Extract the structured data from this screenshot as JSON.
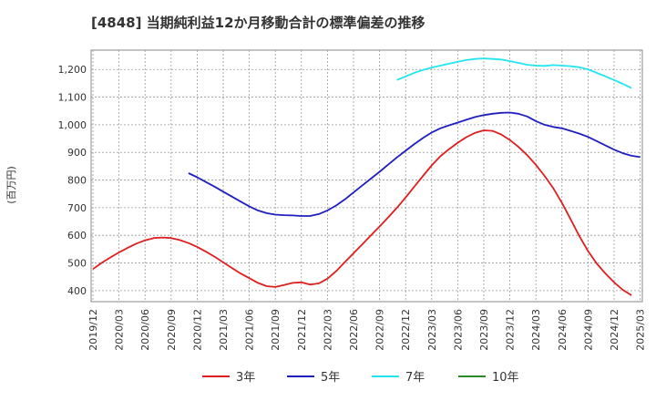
{
  "chart_data": {
    "type": "line",
    "title": "[4848]  当期純利益12か月移動合計の標準偏差の推移",
    "ylabel": "(百万円)",
    "xlabel": "",
    "ylim": [
      360,
      1270
    ],
    "yticks": [
      400,
      500,
      600,
      700,
      800,
      900,
      1000,
      1100,
      1200
    ],
    "ytick_labels": [
      "400",
      "500",
      "600",
      "700",
      "800",
      "900",
      "1,000",
      "1,100",
      "1,200"
    ],
    "xticks": [
      "2019/12",
      "2020/03",
      "2020/06",
      "2020/09",
      "2020/12",
      "2021/03",
      "2021/06",
      "2021/09",
      "2021/12",
      "2022/03",
      "2022/06",
      "2022/09",
      "2022/12",
      "2023/03",
      "2023/06",
      "2023/09",
      "2023/12",
      "2024/03",
      "2024/06",
      "2024/09",
      "2024/12",
      "2025/03"
    ],
    "grid": true,
    "legend_position": "bottom",
    "series": [
      {
        "name": "3年",
        "color": "#dd1f1f",
        "points": [
          [
            "2019/12",
            478
          ],
          [
            "2020/01",
            500
          ],
          [
            "2020/02",
            520
          ],
          [
            "2020/03",
            538
          ],
          [
            "2020/04",
            555
          ],
          [
            "2020/05",
            570
          ],
          [
            "2020/06",
            582
          ],
          [
            "2020/07",
            590
          ],
          [
            "2020/08",
            592
          ],
          [
            "2020/09",
            590
          ],
          [
            "2020/10",
            583
          ],
          [
            "2020/11",
            572
          ],
          [
            "2020/12",
            558
          ],
          [
            "2021/01",
            541
          ],
          [
            "2021/02",
            523
          ],
          [
            "2021/03",
            502
          ],
          [
            "2021/04",
            482
          ],
          [
            "2021/05",
            462
          ],
          [
            "2021/06",
            445
          ],
          [
            "2021/07",
            428
          ],
          [
            "2021/08",
            416
          ],
          [
            "2021/09",
            413
          ],
          [
            "2021/10",
            420
          ],
          [
            "2021/11",
            428
          ],
          [
            "2021/12",
            430
          ],
          [
            "2022/01",
            422
          ],
          [
            "2022/02",
            426
          ],
          [
            "2022/03",
            443
          ],
          [
            "2022/04",
            470
          ],
          [
            "2022/05",
            503
          ],
          [
            "2022/06",
            535
          ],
          [
            "2022/07",
            567
          ],
          [
            "2022/08",
            600
          ],
          [
            "2022/09",
            632
          ],
          [
            "2022/10",
            665
          ],
          [
            "2022/11",
            700
          ],
          [
            "2022/12",
            737
          ],
          [
            "2023/01",
            776
          ],
          [
            "2023/02",
            815
          ],
          [
            "2023/03",
            853
          ],
          [
            "2023/04",
            886
          ],
          [
            "2023/05",
            912
          ],
          [
            "2023/06",
            935
          ],
          [
            "2023/07",
            955
          ],
          [
            "2023/08",
            971
          ],
          [
            "2023/09",
            980
          ],
          [
            "2023/10",
            978
          ],
          [
            "2023/11",
            965
          ],
          [
            "2023/12",
            945
          ],
          [
            "2024/01",
            920
          ],
          [
            "2024/02",
            890
          ],
          [
            "2024/03",
            855
          ],
          [
            "2024/04",
            815
          ],
          [
            "2024/05",
            770
          ],
          [
            "2024/06",
            717
          ],
          [
            "2024/07",
            658
          ],
          [
            "2024/08",
            597
          ],
          [
            "2024/09",
            543
          ],
          [
            "2024/10",
            498
          ],
          [
            "2024/11",
            462
          ],
          [
            "2024/12",
            430
          ],
          [
            "2025/01",
            403
          ],
          [
            "2025/02",
            383
          ]
        ]
      },
      {
        "name": "5年",
        "color": "#1f1fbf",
        "points": [
          [
            "2020/11",
            825
          ],
          [
            "2020/12",
            810
          ],
          [
            "2021/01",
            793
          ],
          [
            "2021/02",
            776
          ],
          [
            "2021/03",
            758
          ],
          [
            "2021/04",
            740
          ],
          [
            "2021/05",
            722
          ],
          [
            "2021/06",
            705
          ],
          [
            "2021/07",
            690
          ],
          [
            "2021/08",
            680
          ],
          [
            "2021/09",
            675
          ],
          [
            "2021/10",
            673
          ],
          [
            "2021/11",
            672
          ],
          [
            "2021/12",
            670
          ],
          [
            "2022/01",
            670
          ],
          [
            "2022/02",
            677
          ],
          [
            "2022/03",
            690
          ],
          [
            "2022/04",
            708
          ],
          [
            "2022/05",
            730
          ],
          [
            "2022/06",
            755
          ],
          [
            "2022/07",
            780
          ],
          [
            "2022/08",
            805
          ],
          [
            "2022/09",
            830
          ],
          [
            "2022/10",
            856
          ],
          [
            "2022/11",
            882
          ],
          [
            "2022/12",
            906
          ],
          [
            "2023/01",
            930
          ],
          [
            "2023/02",
            952
          ],
          [
            "2023/03",
            972
          ],
          [
            "2023/04",
            987
          ],
          [
            "2023/05",
            998
          ],
          [
            "2023/06",
            1008
          ],
          [
            "2023/07",
            1018
          ],
          [
            "2023/08",
            1028
          ],
          [
            "2023/09",
            1035
          ],
          [
            "2023/10",
            1040
          ],
          [
            "2023/11",
            1043
          ],
          [
            "2023/12",
            1044
          ],
          [
            "2024/01",
            1040
          ],
          [
            "2024/02",
            1030
          ],
          [
            "2024/03",
            1013
          ],
          [
            "2024/04",
            1000
          ],
          [
            "2024/05",
            992
          ],
          [
            "2024/06",
            987
          ],
          [
            "2024/07",
            978
          ],
          [
            "2024/08",
            968
          ],
          [
            "2024/09",
            956
          ],
          [
            "2024/10",
            941
          ],
          [
            "2024/11",
            925
          ],
          [
            "2024/12",
            910
          ],
          [
            "2025/01",
            897
          ],
          [
            "2025/02",
            888
          ],
          [
            "2025/03",
            883
          ]
        ]
      },
      {
        "name": "7年",
        "color": "#22e5f0",
        "points": [
          [
            "2022/11",
            1162
          ],
          [
            "2022/12",
            1175
          ],
          [
            "2023/01",
            1188
          ],
          [
            "2023/02",
            1198
          ],
          [
            "2023/03",
            1207
          ],
          [
            "2023/04",
            1214
          ],
          [
            "2023/05",
            1221
          ],
          [
            "2023/06",
            1228
          ],
          [
            "2023/07",
            1234
          ],
          [
            "2023/08",
            1238
          ],
          [
            "2023/09",
            1240
          ],
          [
            "2023/10",
            1238
          ],
          [
            "2023/11",
            1236
          ],
          [
            "2023/12",
            1230
          ],
          [
            "2024/01",
            1224
          ],
          [
            "2024/02",
            1217
          ],
          [
            "2024/03",
            1214
          ],
          [
            "2024/04",
            1213
          ],
          [
            "2024/05",
            1216
          ],
          [
            "2024/06",
            1214
          ],
          [
            "2024/07",
            1212
          ],
          [
            "2024/08",
            1208
          ],
          [
            "2024/09",
            1200
          ],
          [
            "2024/10",
            1188
          ],
          [
            "2024/11",
            1175
          ],
          [
            "2024/12",
            1162
          ],
          [
            "2025/01",
            1148
          ],
          [
            "2025/02",
            1133
          ]
        ]
      },
      {
        "name": "10年",
        "color": "#2a8a2a",
        "points": []
      }
    ]
  }
}
